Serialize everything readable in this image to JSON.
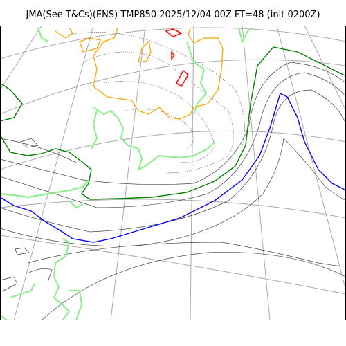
{
  "header": {
    "title": "JMA(See T&Cs)(ENS) TMP850 2025/12/04 00Z FT=48 (init 0200Z)"
  }
}
